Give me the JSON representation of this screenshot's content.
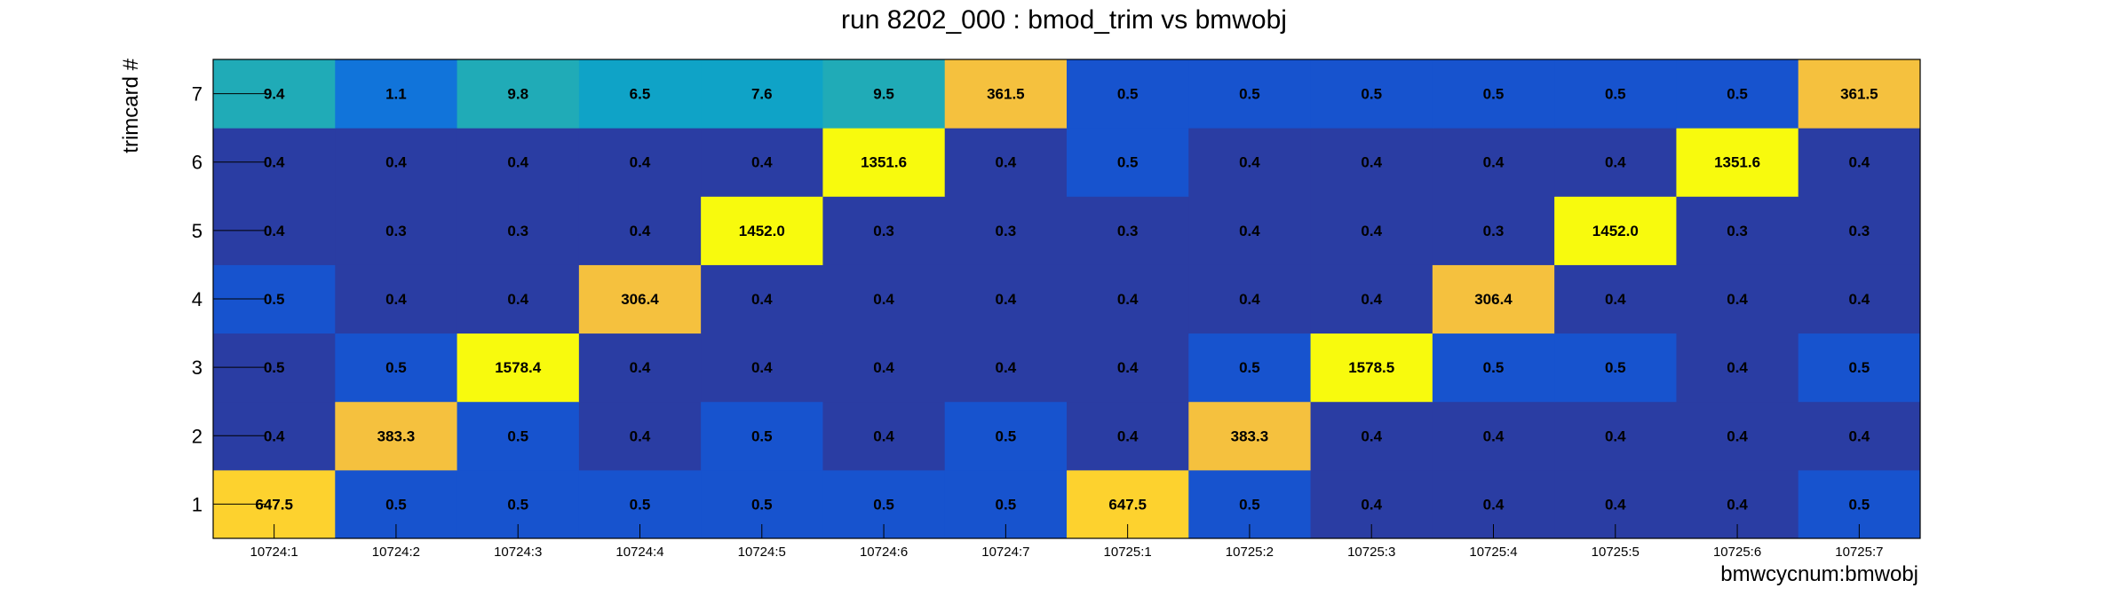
{
  "chart_data": {
    "type": "heatmap",
    "title": "run 8202_000 : bmod_trim vs bmwobj",
    "xlabel": "bmwcycnum:bmwobj",
    "ylabel": "trimcard #",
    "x_categories": [
      "10724:1",
      "10724:2",
      "10724:3",
      "10724:4",
      "10724:5",
      "10724:6",
      "10724:7",
      "10725:1",
      "10725:2",
      "10725:3",
      "10725:4",
      "10725:5",
      "10725:6",
      "10725:7"
    ],
    "y_categories": [
      "1",
      "2",
      "3",
      "4",
      "5",
      "6",
      "7"
    ],
    "values": [
      [
        "647.5",
        "0.5",
        "0.5",
        "0.5",
        "0.5",
        "0.5",
        "0.5",
        "647.5",
        "0.5",
        "0.4",
        "0.4",
        "0.4",
        "0.4",
        "0.5"
      ],
      [
        "0.4",
        "383.3",
        "0.5",
        "0.4",
        "0.5",
        "0.4",
        "0.5",
        "0.4",
        "383.3",
        "0.4",
        "0.4",
        "0.4",
        "0.4",
        "0.4"
      ],
      [
        "0.5",
        "0.5",
        "1578.4",
        "0.4",
        "0.4",
        "0.4",
        "0.4",
        "0.4",
        "0.5",
        "1578.5",
        "0.5",
        "0.5",
        "0.4",
        "0.5"
      ],
      [
        "0.5",
        "0.4",
        "0.4",
        "306.4",
        "0.4",
        "0.4",
        "0.4",
        "0.4",
        "0.4",
        "0.4",
        "306.4",
        "0.4",
        "0.4",
        "0.4"
      ],
      [
        "0.4",
        "0.3",
        "0.3",
        "0.4",
        "1452.0",
        "0.3",
        "0.3",
        "0.3",
        "0.4",
        "0.4",
        "0.3",
        "1452.0",
        "0.3",
        "0.3"
      ],
      [
        "0.4",
        "0.4",
        "0.4",
        "0.4",
        "0.4",
        "1351.6",
        "0.4",
        "0.5",
        "0.4",
        "0.4",
        "0.4",
        "0.4",
        "1351.6",
        "0.4"
      ],
      [
        "9.4",
        "1.1",
        "9.8",
        "6.5",
        "7.6",
        "9.5",
        "361.5",
        "0.5",
        "0.5",
        "0.5",
        "0.5",
        "0.5",
        "0.5",
        "361.5"
      ]
    ],
    "colors": {
      "grid": [
        [
          "#FDD22E",
          "#1753CE",
          "#1753CE",
          "#1753CE",
          "#1753CE",
          "#1753CE",
          "#1753CE",
          "#FDD22E",
          "#1753CE",
          "#2A3DA3",
          "#2A3DA3",
          "#2A3DA3",
          "#2A3DA3",
          "#1753CE"
        ],
        [
          "#2A3DA3",
          "#F5C13E",
          "#1753CE",
          "#2A3DA3",
          "#1753CE",
          "#2A3DA3",
          "#1753CE",
          "#2A3DA3",
          "#F5C13E",
          "#2A3DA3",
          "#2A3DA3",
          "#2A3DA3",
          "#2A3DA3",
          "#2A3DA3"
        ],
        [
          "#2A3DA3",
          "#1753CE",
          "#F8FA0D",
          "#2A3DA3",
          "#2A3DA3",
          "#2A3DA3",
          "#2A3DA3",
          "#2A3DA3",
          "#1753CE",
          "#F8FA0D",
          "#1753CE",
          "#1753CE",
          "#2A3DA3",
          "#1753CE"
        ],
        [
          "#1753CE",
          "#2A3DA3",
          "#2A3DA3",
          "#F5C13E",
          "#2A3DA3",
          "#2A3DA3",
          "#2A3DA3",
          "#2A3DA3",
          "#2A3DA3",
          "#2A3DA3",
          "#F5C13E",
          "#2A3DA3",
          "#2A3DA3",
          "#2A3DA3"
        ],
        [
          "#2A3DA3",
          "#2A3DA3",
          "#2A3DA3",
          "#2A3DA3",
          "#F8FA0D",
          "#2A3DA3",
          "#2A3DA3",
          "#2A3DA3",
          "#2A3DA3",
          "#2A3DA3",
          "#2A3DA3",
          "#F8FA0D",
          "#2A3DA3",
          "#2A3DA3"
        ],
        [
          "#2A3DA3",
          "#2A3DA3",
          "#2A3DA3",
          "#2A3DA3",
          "#2A3DA3",
          "#F8FA0D",
          "#2A3DA3",
          "#1753CE",
          "#2A3DA3",
          "#2A3DA3",
          "#2A3DA3",
          "#2A3DA3",
          "#F8FA0D",
          "#2A3DA3"
        ],
        [
          "#20ABB7",
          "#1174DA",
          "#20ABB7",
          "#0FA3C7",
          "#0FA3C7",
          "#20ABB7",
          "#F5C13E",
          "#1753CE",
          "#1753CE",
          "#1753CE",
          "#1753CE",
          "#1753CE",
          "#1753CE",
          "#F5C13E"
        ]
      ]
    }
  }
}
